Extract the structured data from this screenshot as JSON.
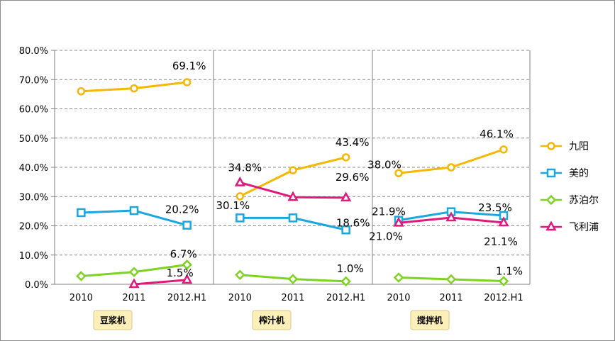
{
  "chart_data": {
    "type": "line",
    "y_ticks": [
      "0.0%",
      "10.0%",
      "20.0%",
      "30.0%",
      "40.0%",
      "50.0%",
      "60.0%",
      "70.0%",
      "80.0%"
    ],
    "ylim": [
      0,
      80
    ],
    "grid": "horizontal dashed",
    "legend_position": "right",
    "panels": [
      {
        "name": "豆浆机",
        "x": [
          "2010",
          "2011",
          "2012.H1"
        ],
        "series": [
          {
            "name": "九阳",
            "values": [
              66.0,
              67.0,
              69.1
            ],
            "labels": [
              null,
              null,
              "69.1%"
            ]
          },
          {
            "name": "美的",
            "values": [
              24.5,
              25.2,
              20.2
            ],
            "labels": [
              null,
              null,
              "20.2%"
            ]
          },
          {
            "name": "苏泊尔",
            "values": [
              2.8,
              4.2,
              6.7
            ],
            "labels": [
              null,
              null,
              "6.7%"
            ]
          },
          {
            "name": "飞利浦",
            "values": [
              null,
              0.0,
              1.5
            ],
            "labels": [
              null,
              null,
              "1.5%"
            ]
          }
        ]
      },
      {
        "name": "榨汁机",
        "x": [
          "2010",
          "2011",
          "2012.H1"
        ],
        "series": [
          {
            "name": "九阳",
            "values": [
              30.1,
              39.0,
              43.4
            ],
            "labels": [
              "30.1%",
              null,
              "43.4%"
            ]
          },
          {
            "name": "美的",
            "values": [
              22.7,
              22.7,
              18.6
            ],
            "labels": [
              null,
              null,
              "18.6%"
            ]
          },
          {
            "name": "苏泊尔",
            "values": [
              3.2,
              1.8,
              1.0
            ],
            "labels": [
              null,
              null,
              "1.0%"
            ]
          },
          {
            "name": "飞利浦",
            "values": [
              34.8,
              29.8,
              29.6
            ],
            "labels": [
              "34.8%",
              null,
              "29.6%"
            ]
          }
        ]
      },
      {
        "name": "搅拌机",
        "x": [
          "2010",
          "2011",
          "2012.H1"
        ],
        "series": [
          {
            "name": "九阳",
            "values": [
              38.0,
              40.0,
              46.1
            ],
            "labels": [
              "38.0%",
              null,
              "46.1%"
            ]
          },
          {
            "name": "美的",
            "values": [
              21.9,
              24.8,
              23.5
            ],
            "labels": [
              "21.9%",
              null,
              "23.5%"
            ]
          },
          {
            "name": "苏泊尔",
            "values": [
              2.3,
              1.7,
              1.1
            ],
            "labels": [
              null,
              null,
              "1.1%"
            ]
          },
          {
            "name": "飞利浦",
            "values": [
              21.0,
              22.8,
              21.1
            ],
            "labels": [
              "21.0%",
              null,
              "21.1%"
            ]
          }
        ]
      }
    ],
    "legend": [
      {
        "name": "九阳",
        "color": "#F5B800",
        "marker": "circle"
      },
      {
        "name": "美的",
        "color": "#1AA7E0",
        "marker": "square"
      },
      {
        "name": "苏泊尔",
        "color": "#7ED321",
        "marker": "diamond"
      },
      {
        "name": "飞利浦",
        "color": "#E0197D",
        "marker": "triangle"
      }
    ]
  }
}
